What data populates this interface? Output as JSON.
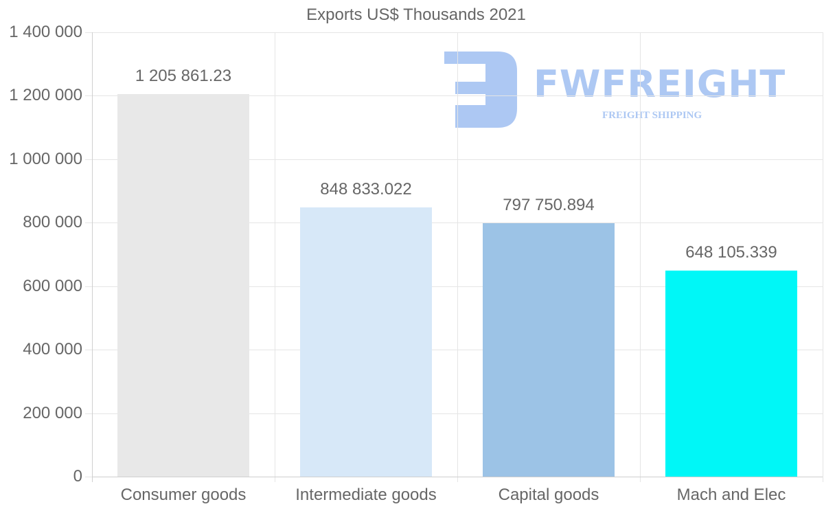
{
  "chart_data": {
    "type": "bar",
    "title": "Exports US$ Thousands 2021",
    "xlabel": "",
    "ylabel": "",
    "categories": [
      "Consumer goods",
      "Intermediate goods",
      "Capital goods",
      "Mach and Elec"
    ],
    "values": [
      1205861.23,
      848833.022,
      797750.894,
      648105.339
    ],
    "value_labels": [
      "1 205 861.23",
      "848 833.022",
      "797 750.894",
      "648 105.339"
    ],
    "colors": [
      "#e8e8e8",
      "#d7e8f8",
      "#9cc3e6",
      "#00f7f7"
    ],
    "ylim": [
      0,
      1400000
    ],
    "yticks": [
      0,
      200000,
      400000,
      600000,
      800000,
      1000000,
      1200000,
      1400000
    ],
    "ytick_labels": [
      "0",
      "200 000",
      "400 000",
      "600 000",
      "800 000",
      "1 000 000",
      "1 200 000",
      "1 400 000"
    ],
    "grid": true,
    "legend": "none"
  },
  "watermark": {
    "brand": "FWFREIGHT",
    "tagline": "FREIGHT SHIPPING",
    "color": "#adc8f3"
  }
}
